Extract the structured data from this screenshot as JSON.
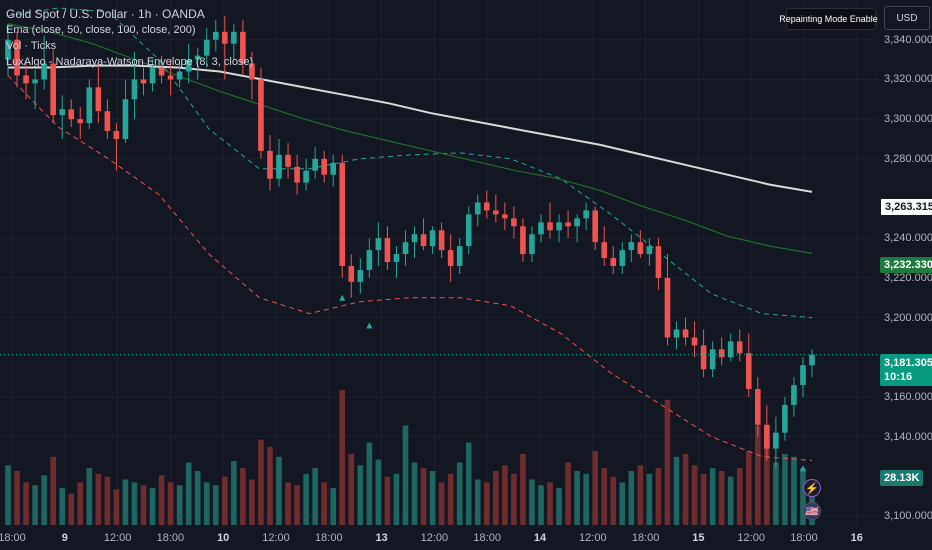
{
  "legend": {
    "title": "Gold Spot / U.S. Dollar · 1h · OANDA",
    "ema": "Ema (close, 50, close, 100, close, 200)",
    "vol": "Vol · Ticks",
    "luxalgo": "LuxAlgo - Nadaraya-Watson Envelope (8, 3, close)"
  },
  "badges": {
    "repainting": "Repainting Mode Enabled",
    "currency": "USD"
  },
  "price_axis": {
    "ticks": [
      "3,340.000",
      "3,320.000",
      "3,300.000",
      "3,280.000",
      "3,240.000",
      "3,220.000",
      "3,200.000",
      "3,160.000",
      "3,140.000",
      "3,100.000"
    ]
  },
  "price_tags": {
    "ema200": "3,263.315",
    "ema100": "3,232.330",
    "last_price": "3,181.305",
    "countdown": "10:16",
    "volume": "28.13K"
  },
  "time_axis": {
    "ticks": [
      {
        "label": "18:00",
        "bold": false
      },
      {
        "label": "9",
        "bold": true
      },
      {
        "label": "12:00",
        "bold": false
      },
      {
        "label": "18:00",
        "bold": false
      },
      {
        "label": "10",
        "bold": true
      },
      {
        "label": "12:00",
        "bold": false
      },
      {
        "label": "18:00",
        "bold": false
      },
      {
        "label": "13",
        "bold": true
      },
      {
        "label": "12:00",
        "bold": false
      },
      {
        "label": "18:00",
        "bold": false
      },
      {
        "label": "14",
        "bold": true
      },
      {
        "label": "12:00",
        "bold": false
      },
      {
        "label": "18:00",
        "bold": false
      },
      {
        "label": "15",
        "bold": true
      },
      {
        "label": "12:00",
        "bold": false
      },
      {
        "label": "18:00",
        "bold": false
      },
      {
        "label": "16",
        "bold": true
      }
    ]
  },
  "events": {
    "bolt": "⚡",
    "flag": "🇺🇸"
  },
  "colors": {
    "up": "#26a69a",
    "down": "#ef5350",
    "ema200": "#d9d9d9",
    "ema100": "#1f6e2c",
    "envelope_upper": "#26a69a",
    "envelope_lower": "#ef5350",
    "background": "#131722"
  },
  "chart_data": {
    "type": "candlestick",
    "price_range": [
      3098,
      3356
    ],
    "grid": true,
    "series": [
      {
        "name": "Gold Spot / U.S. Dollar",
        "kind": "ohlc",
        "candles": [
          [
            3330,
            3348,
            3322,
            3340
          ],
          [
            3340,
            3344,
            3316,
            3322
          ],
          [
            3322,
            3330,
            3310,
            3318
          ],
          [
            3318,
            3325,
            3305,
            3320
          ],
          [
            3320,
            3342,
            3315,
            3328
          ],
          [
            3328,
            3335,
            3298,
            3302
          ],
          [
            3302,
            3312,
            3290,
            3305
          ],
          [
            3305,
            3310,
            3296,
            3300
          ],
          [
            3300,
            3306,
            3290,
            3298
          ],
          [
            3298,
            3320,
            3295,
            3316
          ],
          [
            3316,
            3330,
            3298,
            3304
          ],
          [
            3304,
            3310,
            3290,
            3294
          ],
          [
            3294,
            3298,
            3274,
            3290
          ],
          [
            3290,
            3320,
            3288,
            3310
          ],
          [
            3310,
            3334,
            3300,
            3320
          ],
          [
            3320,
            3326,
            3312,
            3318
          ],
          [
            3318,
            3330,
            3314,
            3326
          ],
          [
            3326,
            3332,
            3318,
            3322
          ],
          [
            3322,
            3330,
            3312,
            3320
          ],
          [
            3320,
            3328,
            3316,
            3324
          ],
          [
            3324,
            3338,
            3318,
            3330
          ],
          [
            3330,
            3336,
            3320,
            3332
          ],
          [
            3332,
            3346,
            3326,
            3340
          ],
          [
            3340,
            3350,
            3334,
            3344
          ],
          [
            3344,
            3352,
            3320,
            3338
          ],
          [
            3338,
            3348,
            3330,
            3344
          ],
          [
            3344,
            3350,
            3322,
            3328
          ],
          [
            3328,
            3334,
            3310,
            3320
          ],
          [
            3320,
            3326,
            3280,
            3284
          ],
          [
            3284,
            3292,
            3264,
            3270
          ],
          [
            3270,
            3290,
            3266,
            3282
          ],
          [
            3282,
            3288,
            3270,
            3276
          ],
          [
            3276,
            3282,
            3262,
            3268
          ],
          [
            3268,
            3280,
            3264,
            3274
          ],
          [
            3274,
            3286,
            3270,
            3280
          ],
          [
            3280,
            3284,
            3268,
            3272
          ],
          [
            3272,
            3282,
            3266,
            3278
          ],
          [
            3278,
            3282,
            3220,
            3226
          ],
          [
            3226,
            3232,
            3210,
            3218
          ],
          [
            3218,
            3230,
            3212,
            3224
          ],
          [
            3224,
            3240,
            3220,
            3234
          ],
          [
            3234,
            3248,
            3226,
            3240
          ],
          [
            3240,
            3246,
            3224,
            3228
          ],
          [
            3228,
            3236,
            3220,
            3232
          ],
          [
            3232,
            3244,
            3226,
            3238
          ],
          [
            3238,
            3246,
            3230,
            3242
          ],
          [
            3242,
            3250,
            3234,
            3236
          ],
          [
            3236,
            3246,
            3232,
            3244
          ],
          [
            3244,
            3248,
            3230,
            3234
          ],
          [
            3234,
            3242,
            3218,
            3226
          ],
          [
            3226,
            3240,
            3222,
            3236
          ],
          [
            3236,
            3256,
            3232,
            3252
          ],
          [
            3252,
            3262,
            3246,
            3258
          ],
          [
            3258,
            3264,
            3250,
            3254
          ],
          [
            3254,
            3262,
            3248,
            3252
          ],
          [
            3252,
            3258,
            3244,
            3250
          ],
          [
            3250,
            3256,
            3240,
            3246
          ],
          [
            3246,
            3250,
            3228,
            3232
          ],
          [
            3232,
            3246,
            3228,
            3242
          ],
          [
            3242,
            3252,
            3238,
            3248
          ],
          [
            3248,
            3258,
            3240,
            3244
          ],
          [
            3244,
            3252,
            3238,
            3248
          ],
          [
            3248,
            3254,
            3240,
            3246
          ],
          [
            3246,
            3252,
            3238,
            3250
          ],
          [
            3250,
            3258,
            3244,
            3254
          ],
          [
            3254,
            3256,
            3234,
            3238
          ],
          [
            3238,
            3246,
            3226,
            3230
          ],
          [
            3230,
            3236,
            3222,
            3226
          ],
          [
            3226,
            3238,
            3222,
            3234
          ],
          [
            3234,
            3242,
            3228,
            3238
          ],
          [
            3238,
            3244,
            3230,
            3232
          ],
          [
            3232,
            3240,
            3226,
            3236
          ],
          [
            3236,
            3240,
            3214,
            3220
          ],
          [
            3220,
            3232,
            3186,
            3190
          ],
          [
            3190,
            3198,
            3184,
            3194
          ],
          [
            3194,
            3200,
            3186,
            3190
          ],
          [
            3190,
            3198,
            3180,
            3186
          ],
          [
            3186,
            3194,
            3170,
            3174
          ],
          [
            3174,
            3188,
            3170,
            3184
          ],
          [
            3184,
            3190,
            3176,
            3180
          ],
          [
            3180,
            3192,
            3178,
            3188
          ],
          [
            3188,
            3194,
            3178,
            3182
          ],
          [
            3182,
            3192,
            3160,
            3164
          ],
          [
            3164,
            3170,
            3140,
            3146
          ],
          [
            3146,
            3156,
            3128,
            3134
          ],
          [
            3134,
            3150,
            3124,
            3142
          ],
          [
            3142,
            3160,
            3138,
            3156
          ],
          [
            3156,
            3170,
            3150,
            3166
          ],
          [
            3166,
            3180,
            3160,
            3176
          ],
          [
            3176,
            3184,
            3170,
            3181.305
          ]
        ]
      },
      {
        "name": "EMA 200",
        "kind": "line",
        "values": [
          3326,
          3326,
          3327,
          3327,
          3326,
          3324,
          3320,
          3316,
          3312,
          3308,
          3303,
          3299,
          3295,
          3291,
          3287,
          3282,
          3277,
          3272,
          3267,
          3263.315
        ]
      },
      {
        "name": "EMA 100",
        "kind": "line",
        "values": [
          3348,
          3344,
          3338,
          3330,
          3322,
          3314,
          3307,
          3300,
          3294,
          3289,
          3284,
          3279,
          3274,
          3270,
          3264,
          3256,
          3249,
          3241,
          3236,
          3232.33
        ]
      },
      {
        "name": "Envelope upper",
        "kind": "line",
        "values": [
          3352,
          3356,
          3354,
          3330,
          3295,
          3275,
          3275,
          3280,
          3282,
          3283,
          3280,
          3270,
          3252,
          3232,
          3212,
          3202,
          3200
        ]
      },
      {
        "name": "Envelope lower",
        "kind": "line",
        "values": [
          3322,
          3296,
          3280,
          3262,
          3232,
          3210,
          3202,
          3208,
          3210,
          3210,
          3206,
          3192,
          3172,
          3156,
          3140,
          3130,
          3128
        ]
      },
      {
        "name": "Vol · Ticks",
        "kind": "volume",
        "values": [
          42,
          38,
          30,
          28,
          35,
          48,
          26,
          22,
          30,
          40,
          36,
          34,
          25,
          32,
          30,
          28,
          26,
          35,
          30,
          28,
          44,
          38,
          30,
          28,
          34,
          45,
          40,
          32,
          60,
          55,
          48,
          30,
          28,
          36,
          40,
          30,
          26,
          95,
          50,
          42,
          58,
          46,
          34,
          36,
          70,
          44,
          40,
          38,
          30,
          36,
          44,
          58,
          32,
          30,
          38,
          42,
          36,
          50,
          32,
          28,
          30,
          26,
          44,
          38,
          36,
          52,
          40,
          34,
          30,
          38,
          42,
          36,
          40,
          88,
          48,
          50,
          42,
          36,
          40,
          38,
          34,
          40,
          52,
          70,
          64,
          44,
          50,
          48,
          40,
          28
        ]
      }
    ]
  }
}
